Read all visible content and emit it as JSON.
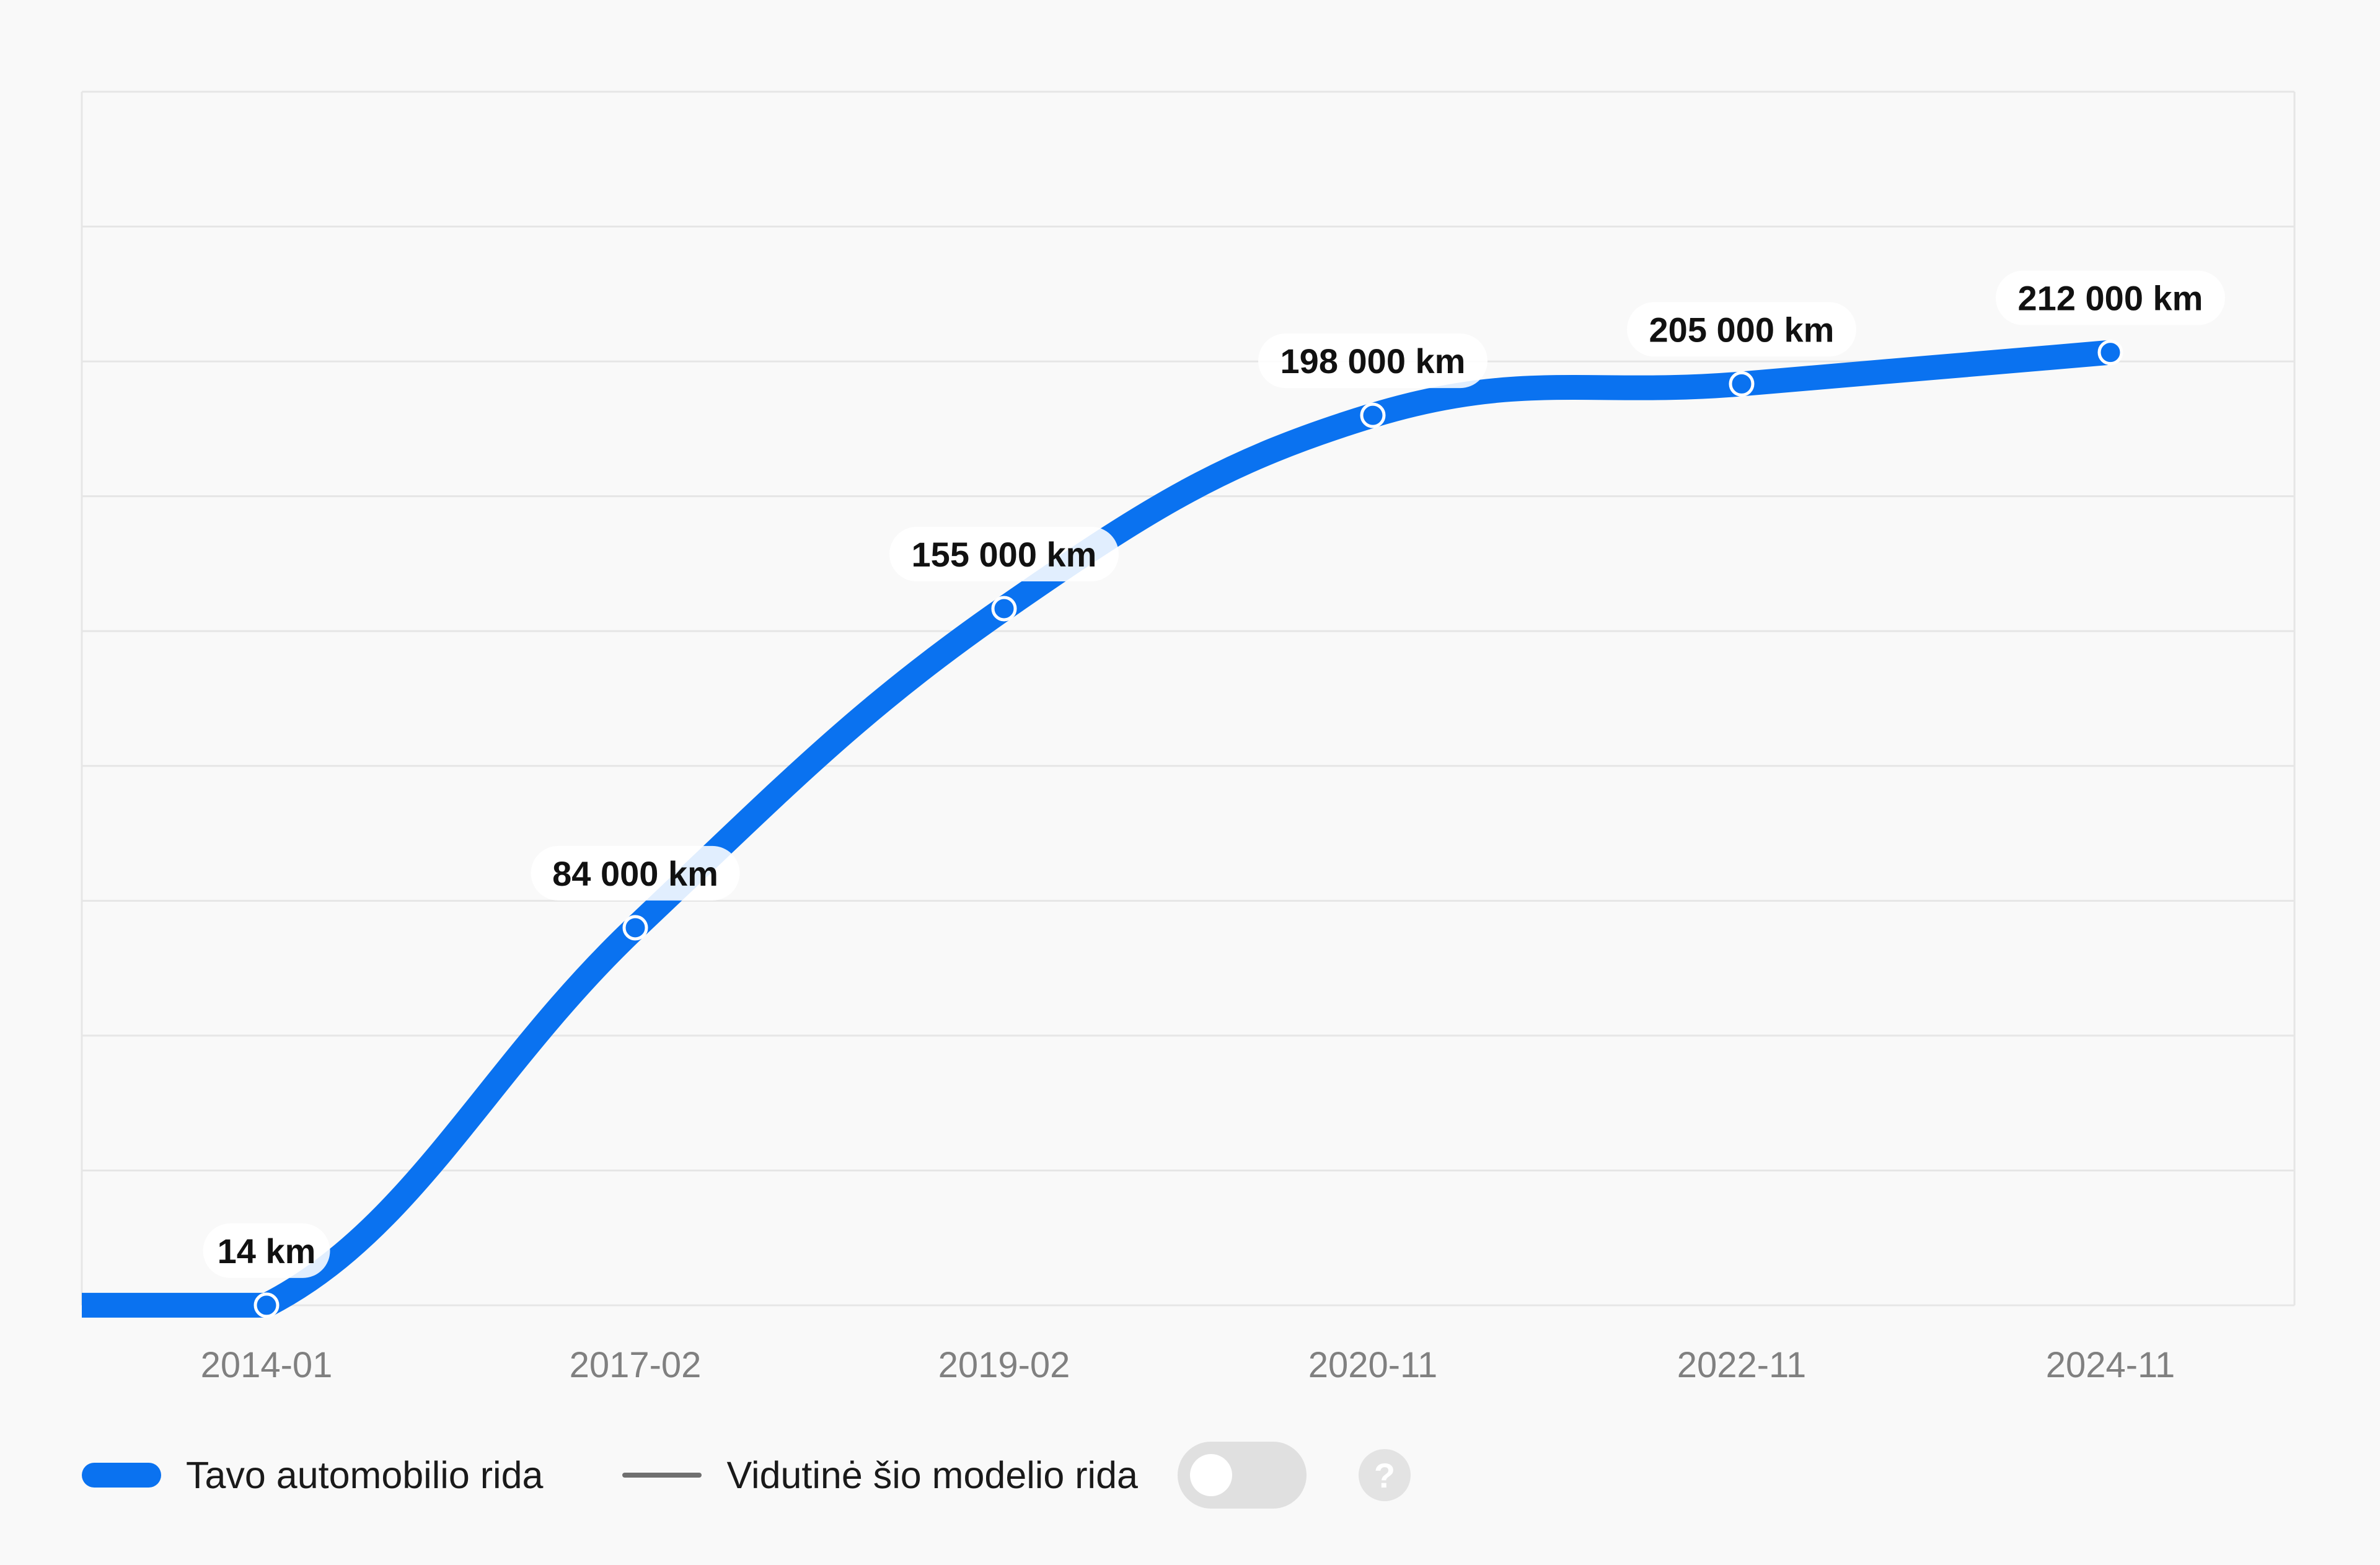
{
  "chart_data": {
    "type": "line",
    "x": [
      "2014-01",
      "2017-02",
      "2019-02",
      "2020-11",
      "2022-11",
      "2024-11"
    ],
    "values": [
      14,
      84000,
      155000,
      198000,
      205000,
      212000
    ],
    "point_labels": [
      "14 km",
      "84 000 km",
      "155 000 km",
      "198 000 km",
      "205 000 km",
      "212 000 km"
    ],
    "ylim": [
      0,
      270000
    ],
    "grid": true,
    "color": "#0a72f0"
  },
  "legend": {
    "series_label": "Tavo automobilio rida",
    "average_label": "Vidutinė šio modelio rida",
    "help_symbol": "?",
    "toggle_on": false
  },
  "colors": {
    "line": "#0a72f0",
    "average_line": "#707070",
    "grid": "#e6e6e6",
    "tick_text": "#808080",
    "label_text": "#111111"
  }
}
